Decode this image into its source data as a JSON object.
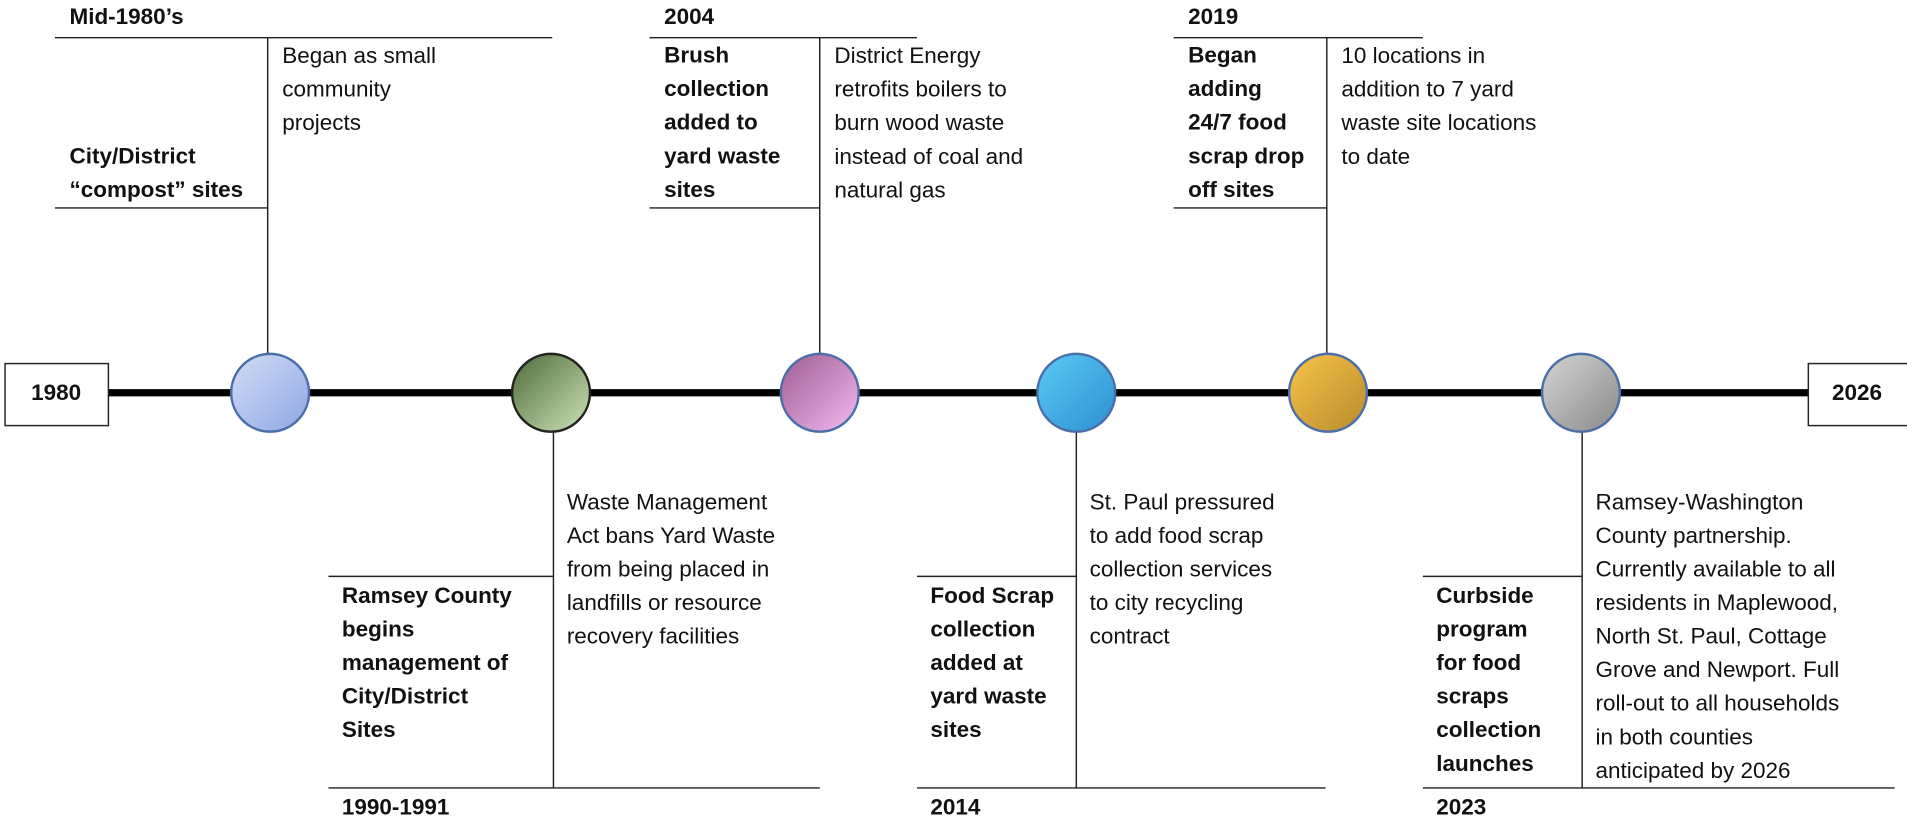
{
  "timeline": {
    "start": "1980",
    "end": "2026",
    "events": [
      {
        "year": "Mid-1980’s",
        "position": "top",
        "colors": [
          "#d3ddf5",
          "#8ea6e4"
        ],
        "stroke": "#4a6ea8",
        "title": [
          "City/District",
          "“compost” sites"
        ],
        "description": [
          "Began as small",
          "community",
          "projects"
        ]
      },
      {
        "year": "1990-1991",
        "position": "bottom",
        "colors": [
          "#4d6a38",
          "#cfe4b8"
        ],
        "stroke": "#222222",
        "title": [
          "Ramsey County",
          "begins",
          "management of",
          "City/District",
          "Sites"
        ],
        "description": [
          "Waste Management",
          "Act bans Yard Waste",
          "from being placed in",
          "landfills or resource",
          "recovery facilities"
        ]
      },
      {
        "year": "2004",
        "position": "top",
        "colors": [
          "#9c5c92",
          "#f4baf0"
        ],
        "stroke": "#4a6ea8",
        "title": [
          "Brush",
          "collection",
          "added to",
          "yard waste",
          "sites"
        ],
        "description": [
          "District Energy",
          "retrofits boilers to",
          "burn wood waste",
          "instead of coal and",
          "natural gas"
        ]
      },
      {
        "year": "2014",
        "position": "bottom",
        "colors": [
          "#5ccaf4",
          "#2b8fd2"
        ],
        "stroke": "#4a6ea8",
        "title": [
          "Food Scrap",
          "collection",
          "added at",
          "yard waste",
          "sites"
        ],
        "description": [
          "St. Paul pressured",
          "to add food scrap",
          "collection services",
          "to city recycling",
          "contract"
        ]
      },
      {
        "year": "2019",
        "position": "top",
        "colors": [
          "#f9c44a",
          "#b88a2c"
        ],
        "stroke": "#4a6ea8",
        "title": [
          "Began",
          "adding",
          "24/7 food",
          "scrap drop",
          "off sites"
        ],
        "description": [
          "10 locations in",
          "addition to 7 yard",
          "waste site locations",
          "to date"
        ]
      },
      {
        "year": "2023",
        "position": "bottom",
        "colors": [
          "#d4d4d4",
          "#8a8a8a"
        ],
        "stroke": "#4a6ea8",
        "title": [
          "Curbside",
          "program",
          "for food",
          "scraps",
          "collection",
          "launches"
        ],
        "description": [
          "Ramsey-Washington",
          "County partnership.",
          "Currently available to all",
          "residents in Maplewood,",
          "North St. Paul, Cottage",
          "Grove and Newport. Full",
          "roll-out to all households",
          "in both counties",
          "anticipated by 2026"
        ]
      }
    ]
  }
}
